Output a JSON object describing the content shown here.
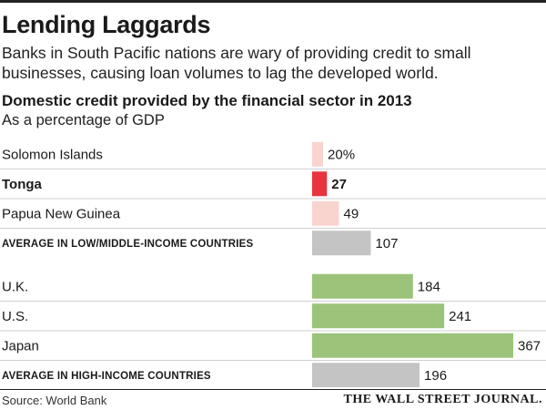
{
  "header": {
    "title": "Lending Laggards",
    "subtitle": "Banks in South Pacific nations are wary of providing credit to small businesses, causing loan volumes to lag the developed world."
  },
  "chart_data": {
    "type": "bar",
    "orientation": "horizontal",
    "title": "Domestic credit provided by the financial sector in 2013",
    "subtitle": "As a percentage of GDP",
    "unit_suffix_first": "%",
    "xlim": [
      0,
      367
    ],
    "grid": false,
    "legend": "none",
    "groups": [
      {
        "rows": [
          {
            "label": "Solomon Islands",
            "value": 20,
            "value_label": "20%",
            "color": "#f9d4cf",
            "emphasis": false,
            "style": "normal"
          },
          {
            "label": "Tonga",
            "value": 27,
            "value_label": "27",
            "color": "#e8343f",
            "emphasis": true,
            "style": "normal"
          },
          {
            "label": "Papua New Guinea",
            "value": 49,
            "value_label": "49",
            "color": "#f9d4cf",
            "emphasis": false,
            "style": "normal"
          },
          {
            "label": "AVERAGE IN LOW/MIDDLE-INCOME COUNTRIES",
            "value": 107,
            "value_label": "107",
            "color": "#c4c4c4",
            "emphasis": false,
            "style": "caps"
          }
        ]
      },
      {
        "rows": [
          {
            "label": "U.K.",
            "value": 184,
            "value_label": "184",
            "color": "#9bc47a",
            "emphasis": false,
            "style": "normal"
          },
          {
            "label": "U.S.",
            "value": 241,
            "value_label": "241",
            "color": "#9bc47a",
            "emphasis": false,
            "style": "normal"
          },
          {
            "label": "Japan",
            "value": 367,
            "value_label": "367",
            "color": "#9bc47a",
            "emphasis": false,
            "style": "normal"
          },
          {
            "label": "AVERAGE IN HIGH-INCOME COUNTRIES",
            "value": 196,
            "value_label": "196",
            "color": "#c4c4c4",
            "emphasis": false,
            "style": "caps"
          }
        ]
      }
    ]
  },
  "footer": {
    "source": "Source: World Bank",
    "publisher": "THE WALL STREET JOURNAL."
  }
}
